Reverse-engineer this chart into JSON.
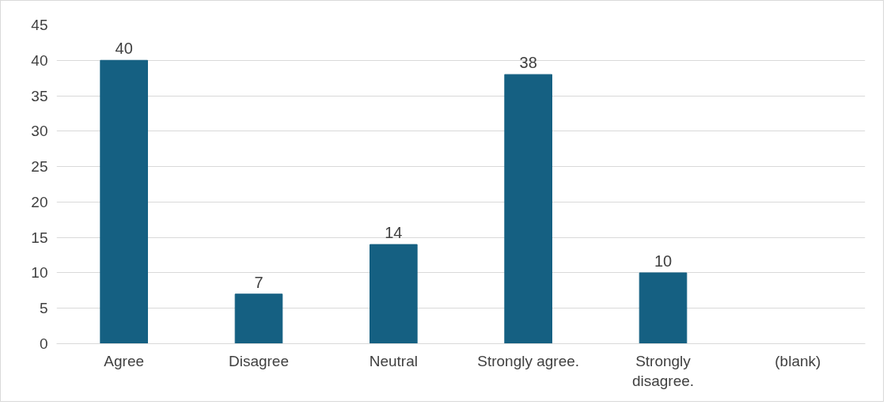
{
  "chart_data": {
    "type": "bar",
    "categories": [
      "Agree",
      "Disagree",
      "Neutral",
      "Strongly agree.",
      "Strongly\ndisagree.",
      "(blank)"
    ],
    "values": [
      40,
      7,
      14,
      38,
      10,
      null
    ],
    "color": "#156082",
    "ylim": [
      0,
      45
    ],
    "yticks": [
      0,
      5,
      10,
      15,
      20,
      25,
      30,
      35,
      40,
      45
    ],
    "grid": "y",
    "data_labels": true
  }
}
